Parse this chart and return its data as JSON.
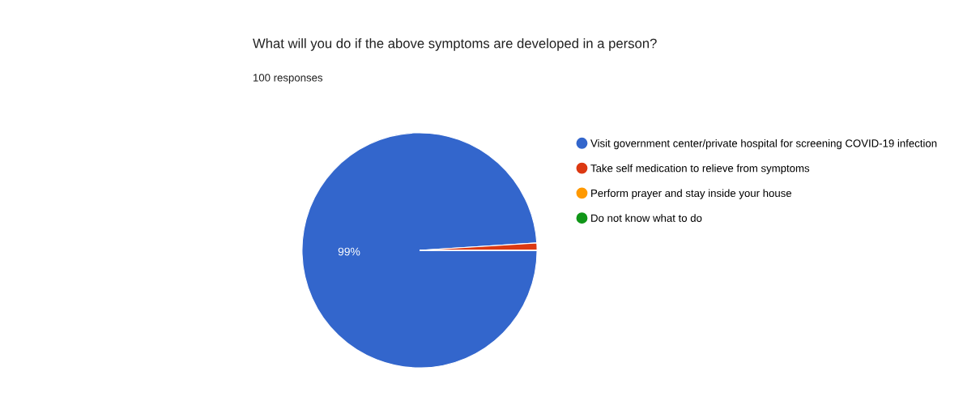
{
  "chart_data": {
    "type": "pie",
    "title": "What will you do if the above symptoms are developed in a person?",
    "subtitle": "100 responses",
    "categories": [
      "Visit government center/private hospital for screening COVID-19 infection",
      "Take self medication to relieve from symptoms",
      "Perform prayer and stay inside your house",
      "Do not know what to do"
    ],
    "values": [
      99,
      1,
      0,
      0
    ],
    "colors": [
      "#3366cc",
      "#dc3912",
      "#ff9900",
      "#109618"
    ],
    "value_labels": [
      "99%",
      null,
      null,
      null
    ],
    "legend": "right"
  }
}
